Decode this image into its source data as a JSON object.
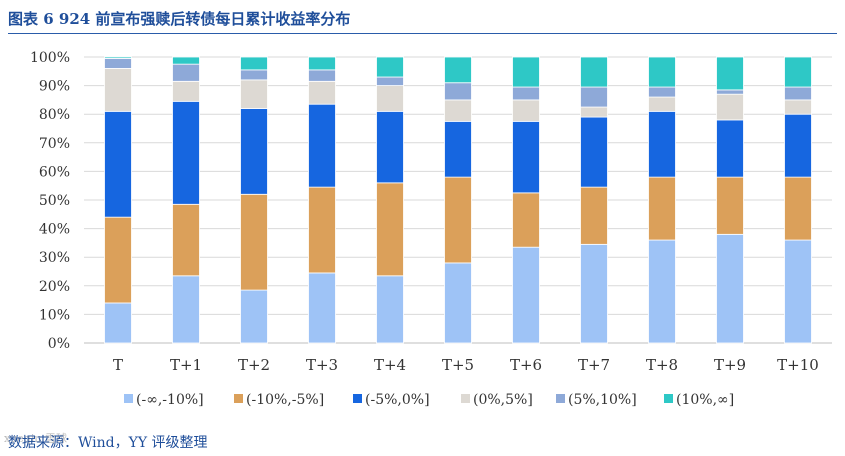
{
  "title": "图表 6 924 前宣布强赎后转债每日累计收益率分布",
  "source": "数据来源：Wind，YY 评级整理",
  "watermark": "xueqiu 雪球",
  "chart_data": {
    "type": "bar",
    "stacked": true,
    "categories": [
      "T",
      "T+1",
      "T+2",
      "T+3",
      "T+4",
      "T+5",
      "T+6",
      "T+7",
      "T+8",
      "T+9",
      "T+10"
    ],
    "ylim": [
      0,
      100
    ],
    "yticks": [
      0,
      10,
      20,
      30,
      40,
      50,
      60,
      70,
      80,
      90,
      100
    ],
    "ytick_labels": [
      "0%",
      "10%",
      "20%",
      "30%",
      "40%",
      "50%",
      "60%",
      "70%",
      "80%",
      "90%",
      "100%"
    ],
    "legend_position": "bottom",
    "series": [
      {
        "name": "(-∞,-10%]",
        "color": "#9ec3f6",
        "values": [
          14,
          23.5,
          18.5,
          24.5,
          23.5,
          28,
          33.5,
          34.5,
          36,
          38,
          36
        ]
      },
      {
        "name": "(-10%,-5%]",
        "color": "#dba05a",
        "values": [
          30,
          25,
          33.5,
          30,
          32.5,
          30,
          19,
          20,
          22,
          20,
          22
        ]
      },
      {
        "name": "(-5%,0%]",
        "color": "#1666e0",
        "values": [
          37,
          36,
          30,
          29,
          25,
          19.5,
          25,
          24.5,
          23,
          20,
          22
        ]
      },
      {
        "name": "(0%,5%]",
        "color": "#ddd9d3",
        "values": [
          15,
          7,
          10,
          8,
          9,
          7.5,
          7.5,
          3.5,
          5,
          9,
          5
        ]
      },
      {
        "name": "(5%,10%]",
        "color": "#8ea9d8",
        "values": [
          3.5,
          6,
          3.5,
          4,
          3,
          6,
          4.5,
          7,
          3.5,
          1.5,
          4.5
        ]
      },
      {
        "name": "(10%,∞]",
        "color": "#2ec8c6",
        "values": [
          0.5,
          2.5,
          4.5,
          4.5,
          7,
          9,
          10.5,
          10.5,
          10.5,
          11.5,
          10.5
        ]
      }
    ]
  }
}
